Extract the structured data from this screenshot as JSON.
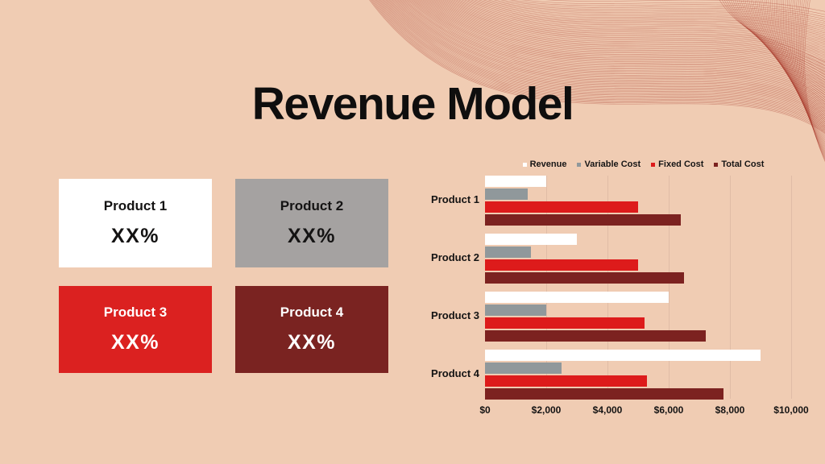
{
  "slide": {
    "title": "Revenue Model"
  },
  "colors": {
    "background": "#f0ccb3",
    "title_text": "#0f0e0e",
    "gridline": "#e0bca6",
    "wave_accent": "#a63527"
  },
  "products": [
    {
      "name": "Product 1",
      "value": "XX%",
      "bg": "#ffffff",
      "fg": "#141313"
    },
    {
      "name": "Product 2",
      "value": "XX%",
      "bg": "#a5a2a1",
      "fg": "#141313"
    },
    {
      "name": "Product 3",
      "value": "XX%",
      "bg": "#db2120",
      "fg": "#ffffff"
    },
    {
      "name": "Product 4",
      "value": "XX%",
      "bg": "#7a2321",
      "fg": "#ffffff"
    }
  ],
  "chart_data": {
    "type": "bar",
    "orientation": "horizontal",
    "title": "",
    "categories": [
      "Product 1",
      "Product 2",
      "Product 3",
      "Product 4"
    ],
    "series": [
      {
        "name": "Revenue",
        "color": "#ffffff",
        "values": [
          2000,
          3000,
          6000,
          9000
        ]
      },
      {
        "name": "Variable Cost",
        "color": "#90989b",
        "values": [
          1400,
          1500,
          2000,
          2500
        ]
      },
      {
        "name": "Fixed Cost",
        "color": "#dd1b1b",
        "values": [
          5000,
          5000,
          5200,
          5300
        ]
      },
      {
        "name": "Total Cost",
        "color": "#7c2220",
        "values": [
          6400,
          6500,
          7200,
          7800
        ]
      }
    ],
    "xlim": [
      0,
      10000
    ],
    "xticks": [
      "$0",
      "$2,000",
      "$4,000",
      "$6,000",
      "$8,000",
      "$10,000"
    ],
    "grid": true,
    "legend_position": "top"
  }
}
